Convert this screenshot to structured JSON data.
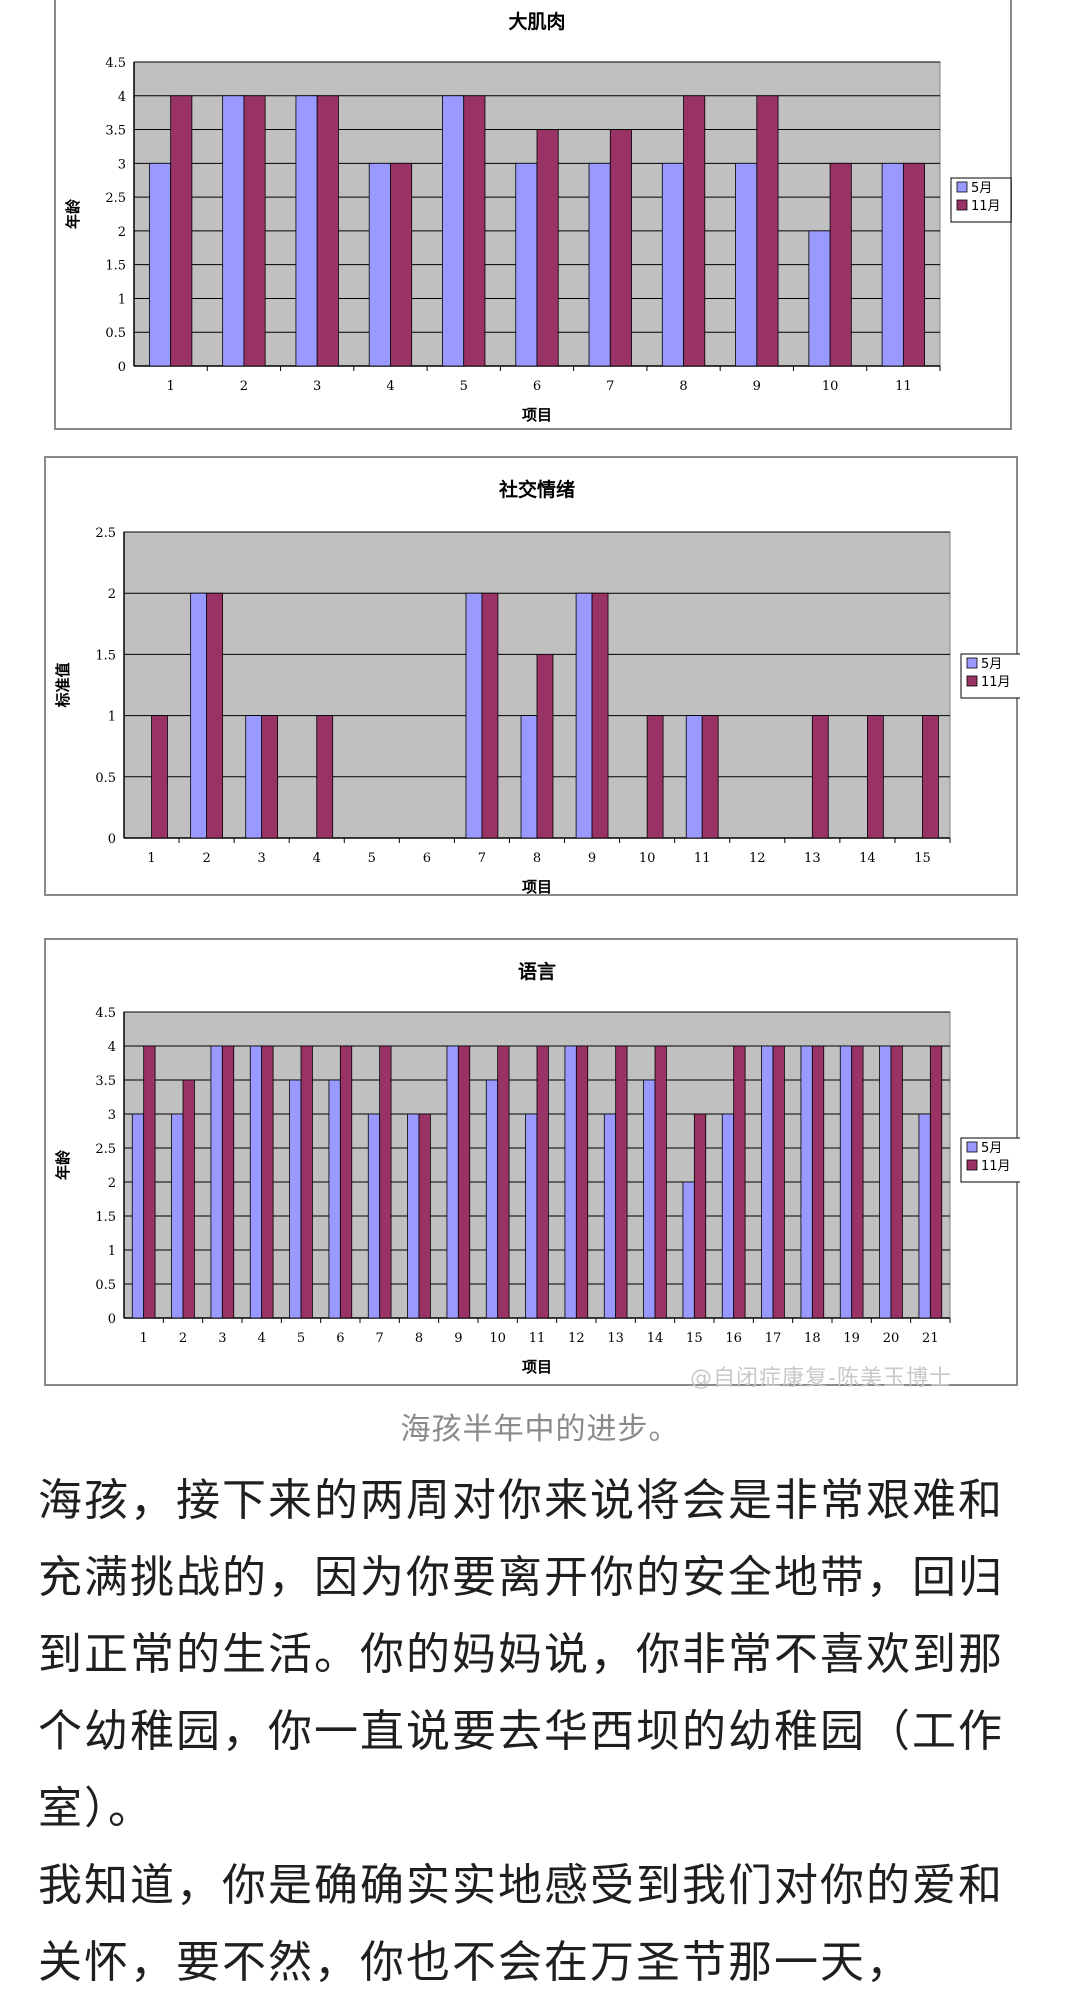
{
  "charts": [
    {
      "type": "bar",
      "title": "大肌肉",
      "xlabel": "项目",
      "ylabel": "年龄",
      "categories": [
        "1",
        "2",
        "3",
        "4",
        "5",
        "6",
        "7",
        "8",
        "9",
        "10",
        "11"
      ],
      "ylim": [
        0,
        4.5
      ],
      "yticks": [
        "0",
        "0.5",
        "1",
        "1.5",
        "2",
        "2.5",
        "3",
        "3.5",
        "4",
        "4.5"
      ],
      "series": [
        {
          "name": "5月",
          "values": [
            3,
            4,
            4,
            3,
            4,
            3,
            3,
            3,
            3,
            2,
            3
          ]
        },
        {
          "name": "11月",
          "values": [
            4,
            4,
            4,
            3,
            4,
            3.5,
            3.5,
            4,
            4,
            3,
            3
          ]
        }
      ],
      "grid": true,
      "legend": "right"
    },
    {
      "type": "bar",
      "title": "社交情绪",
      "xlabel": "项目",
      "ylabel": "标准值",
      "categories": [
        "1",
        "2",
        "3",
        "4",
        "5",
        "6",
        "7",
        "8",
        "9",
        "10",
        "11",
        "12",
        "13",
        "14",
        "15"
      ],
      "ylim": [
        0,
        2.5
      ],
      "yticks": [
        "0",
        "0.5",
        "1",
        "1.5",
        "2",
        "2.5"
      ],
      "series": [
        {
          "name": "5月",
          "values": [
            0,
            2,
            1,
            0,
            0,
            0,
            2,
            1,
            2,
            0,
            1,
            0,
            0,
            0,
            0
          ]
        },
        {
          "name": "11月",
          "values": [
            1,
            2,
            1,
            1,
            0,
            0,
            2,
            1.5,
            2,
            1,
            1,
            0,
            1,
            1,
            1
          ]
        }
      ],
      "grid": true,
      "legend": "right"
    },
    {
      "type": "bar",
      "title": "语言",
      "xlabel": "项目",
      "ylabel": "年龄",
      "categories": [
        "1",
        "2",
        "3",
        "4",
        "5",
        "6",
        "7",
        "8",
        "9",
        "10",
        "11",
        "12",
        "13",
        "14",
        "15",
        "16",
        "17",
        "18",
        "19",
        "20",
        "21"
      ],
      "ylim": [
        0,
        4.5
      ],
      "yticks": [
        "0",
        "0.5",
        "1",
        "1.5",
        "2",
        "2.5",
        "3",
        "3.5",
        "4",
        "4.5"
      ],
      "series": [
        {
          "name": "5月",
          "values": [
            3,
            3,
            4,
            4,
            3.5,
            3.5,
            3,
            3,
            4,
            3.5,
            3,
            4,
            3,
            3.5,
            2,
            3,
            4,
            4,
            4,
            4,
            3
          ]
        },
        {
          "name": "11月",
          "values": [
            4,
            3.5,
            4,
            4,
            4,
            4,
            4,
            3,
            4,
            4,
            4,
            4,
            4,
            4,
            3,
            4,
            4,
            4,
            4,
            4,
            4
          ]
        }
      ],
      "grid": true,
      "legend": "right"
    }
  ],
  "colors": {
    "series1": "#9999ff",
    "series2": "#993366",
    "plot_bg": "#c0c0c0",
    "gridline": "#000000"
  },
  "watermark": "@自闭症康复-陈美玉博士",
  "caption": "海孩半年中的进步。",
  "paragraphs": [
    "海孩，接下来的两周对你来说将会是非常艰难和充满挑战的，因为你要离开你的安全地带，回归到正常的生活。你的妈妈说，你非常不喜欢到那个幼稚园，你一直说要去华西坝的幼稚园（工作室）。",
    "我知道，你是确确实实地感受到我们对你的爱和关怀，要不然，你也不会在万圣节那一天，"
  ]
}
